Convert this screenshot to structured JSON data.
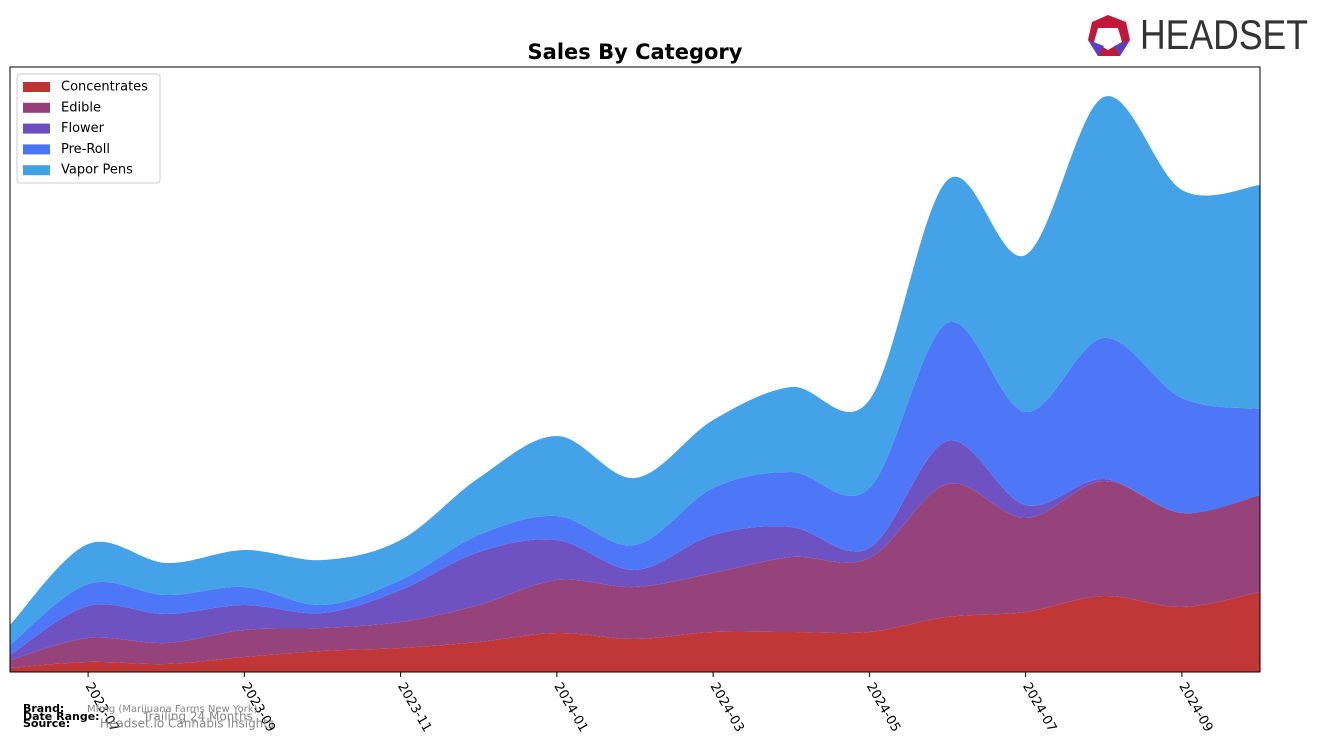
{
  "chart_data": {
    "type": "stacked_area",
    "title": "Sales By Category",
    "x": [
      "2023-06",
      "2023-07",
      "2023-08",
      "2023-09",
      "2023-10",
      "2023-11",
      "2023-12",
      "2024-01",
      "2024-02",
      "2024-03",
      "2024-04",
      "2024-05",
      "2024-06",
      "2024-07",
      "2024-08",
      "2024-09",
      "2024-10"
    ],
    "xticks": [
      "2023-07",
      "2023-09",
      "2023-11",
      "2024-01",
      "2024-03",
      "2024-05",
      "2024-07",
      "2024-09"
    ],
    "ylim": [
      0,
      605
    ],
    "legend": "upper left",
    "series": [
      {
        "name": "Concentrates",
        "color": "#c03232",
        "values": [
          4,
          10,
          8,
          15,
          21,
          24,
          30,
          39,
          33,
          40,
          40,
          40,
          55,
          60,
          76,
          65,
          80
        ]
      },
      {
        "name": "Edible",
        "color": "#953f78",
        "values": [
          8,
          24,
          21,
          27,
          23,
          26,
          37,
          53,
          52,
          59,
          75,
          74,
          133,
          94,
          115,
          94,
          97
        ]
      },
      {
        "name": "Flower",
        "color": "#6b4fc0",
        "values": [
          5,
          32,
          29,
          25,
          15,
          32,
          53,
          40,
          17,
          38,
          30,
          10,
          43,
          13,
          2,
          0,
          0
        ]
      },
      {
        "name": "Pre-Roll",
        "color": "#4a74f8",
        "values": [
          10,
          22,
          19,
          18,
          8,
          10,
          17,
          24,
          25,
          47,
          55,
          60,
          118,
          93,
          141,
          115,
          86
        ]
      },
      {
        "name": "Vapor Pens",
        "color": "#40a0e8",
        "values": [
          20,
          40,
          32,
          37,
          45,
          40,
          57,
          80,
          67,
          68,
          85,
          88,
          143,
          157,
          241,
          208,
          224
        ]
      }
    ]
  },
  "logo": "HEADSET",
  "footer": {
    "brand_label": "Brand:",
    "brand": "Mfmg (Marijuana Farms New York)",
    "date_range_label": "Date Range:",
    "date_range": "Trailing 24 Months",
    "source_label": "Source:",
    "source": "Headset.io Cannabis Insights"
  }
}
